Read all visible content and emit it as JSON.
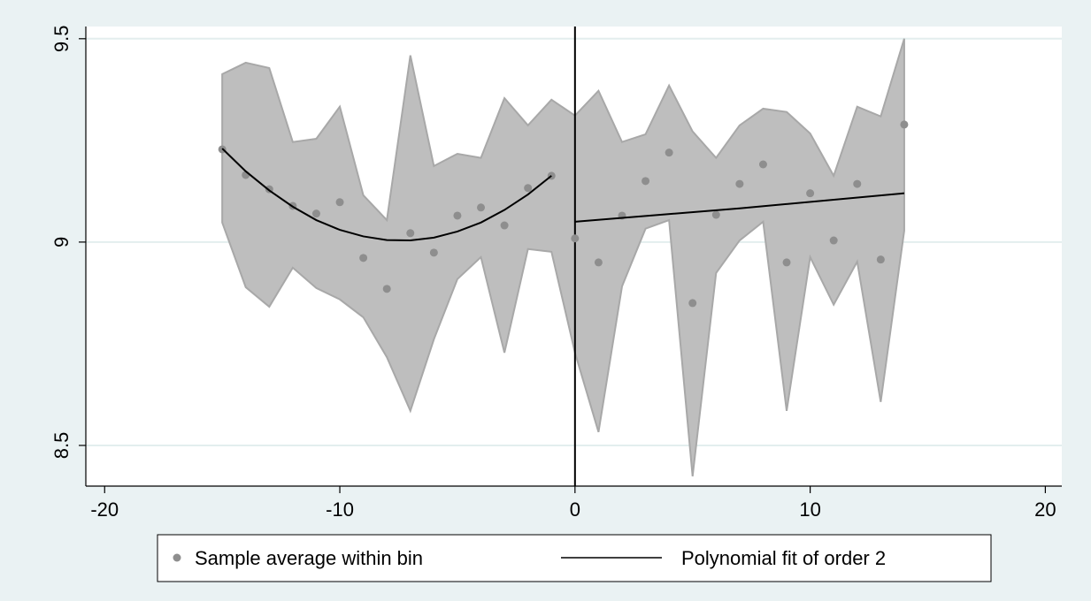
{
  "chart_data": {
    "type": "scatter",
    "x": [
      -15,
      -14,
      -13,
      -12,
      -11,
      -10,
      -9,
      -8,
      -7,
      -6,
      -5,
      -4,
      -3,
      -2,
      -1,
      0,
      1,
      2,
      3,
      4,
      5,
      6,
      7,
      8,
      9,
      10,
      11,
      12,
      13,
      14
    ],
    "series": [
      {
        "name": "Sample average within bin",
        "color": "#8e8e8e",
        "values": [
          9.228,
          9.165,
          9.13,
          9.089,
          9.07,
          9.098,
          8.961,
          8.885,
          9.022,
          8.974,
          9.065,
          9.085,
          9.041,
          9.133,
          9.163,
          9.009,
          8.95,
          9.065,
          9.15,
          9.22,
          8.85,
          9.067,
          9.143,
          9.191,
          8.95,
          9.12,
          9.004,
          9.143,
          8.957,
          9.289
        ]
      }
    ],
    "band": {
      "color": "#bebebe",
      "edge": "#a8a8a8",
      "upper": [
        9.413,
        9.441,
        9.428,
        9.246,
        9.254,
        9.333,
        9.115,
        9.054,
        9.459,
        9.187,
        9.217,
        9.207,
        9.354,
        9.287,
        9.35,
        9.311,
        9.372,
        9.246,
        9.265,
        9.385,
        9.272,
        9.207,
        9.287,
        9.328,
        9.32,
        9.267,
        9.163,
        9.333,
        9.309,
        9.5
      ],
      "lower": [
        9.048,
        8.889,
        8.841,
        8.937,
        8.887,
        8.859,
        8.815,
        8.717,
        8.585,
        8.761,
        8.909,
        8.963,
        8.728,
        8.983,
        8.976,
        8.728,
        8.533,
        8.891,
        9.033,
        9.054,
        8.424,
        8.924,
        9.004,
        9.05,
        8.585,
        8.963,
        8.846,
        8.952,
        8.607,
        9.028
      ]
    },
    "fit": {
      "name": "Polynomial fit of order 2",
      "color": "#000000",
      "pieces": [
        {
          "x": [
            -15,
            -14,
            -13,
            -12,
            -11,
            -10,
            -9,
            -8,
            -7,
            -6,
            -5,
            -4,
            -3,
            -2,
            -1
          ],
          "values": [
            9.23,
            9.174,
            9.127,
            9.087,
            9.054,
            9.03,
            9.014,
            9.005,
            9.004,
            9.011,
            9.026,
            9.048,
            9.079,
            9.117,
            9.163
          ]
        },
        {
          "x": [
            0,
            7,
            14
          ],
          "values": [
            9.05,
            9.083,
            9.12
          ]
        }
      ]
    },
    "xline": 0,
    "xlim": [
      -20.8,
      20.7
    ],
    "ylim": [
      8.4,
      9.53
    ],
    "xticks": [
      -20,
      -10,
      0,
      10,
      20
    ],
    "yticks": [
      8.5,
      9,
      9.5
    ],
    "grid": true,
    "legend": "bottom"
  }
}
